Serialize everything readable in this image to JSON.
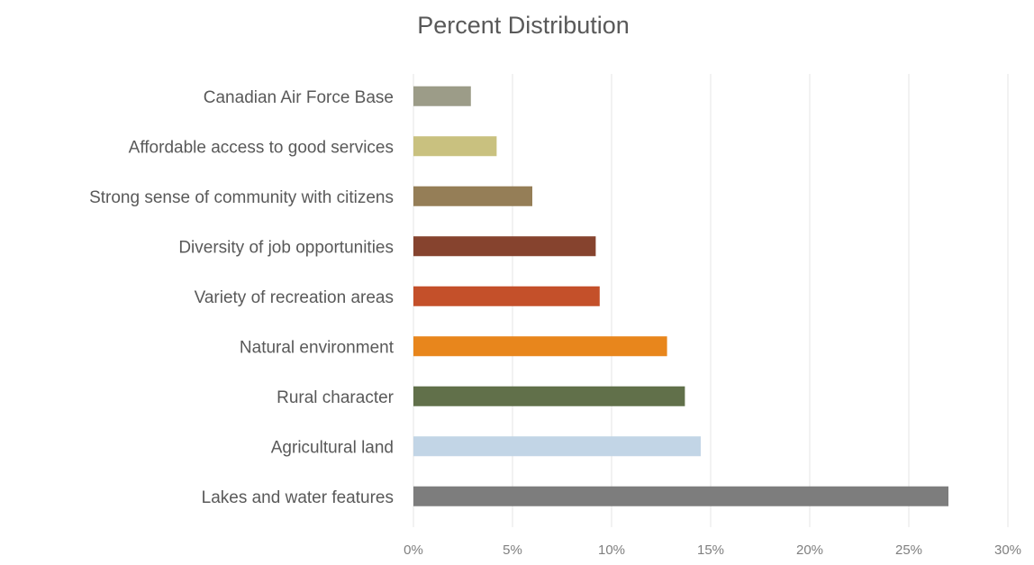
{
  "chart_data": {
    "type": "bar",
    "orientation": "horizontal",
    "title": "Percent Distribution",
    "categories": [
      "Canadian Air Force Base",
      "Affordable access to good services",
      "Strong sense of community with citizens",
      "Diversity of job opportunities",
      "Variety of recreation areas",
      "Natural environment",
      "Rural character",
      "Agricultural land",
      "Lakes and water features"
    ],
    "values": [
      2.9,
      4.2,
      6.0,
      9.2,
      9.4,
      12.8,
      13.7,
      14.5,
      27.0
    ],
    "colors": [
      "#9c9c88",
      "#c9c17f",
      "#957e57",
      "#86432e",
      "#c4502a",
      "#e8861c",
      "#61704a",
      "#c2d5e6",
      "#7d7d7d"
    ],
    "xlim": [
      0,
      30
    ],
    "x_ticks": [
      0,
      5,
      10,
      15,
      20,
      25,
      30
    ],
    "x_tick_labels": [
      "0%",
      "5%",
      "10%",
      "15%",
      "20%",
      "25%",
      "30%"
    ],
    "xlabel": "",
    "ylabel": "",
    "grid": "vertical",
    "legend": "none"
  }
}
